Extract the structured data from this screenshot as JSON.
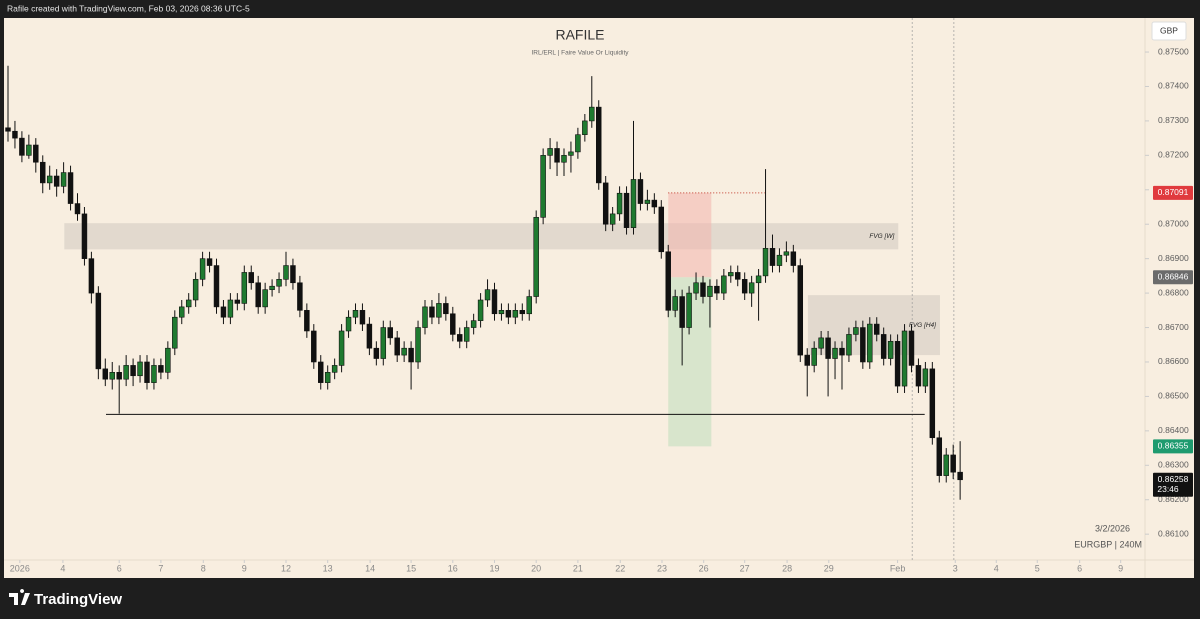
{
  "header": "Rafile created with TradingView.com, Feb 03, 2026 08:36 UTC-5",
  "footer": {
    "brand": "TradingView"
  },
  "chart_data": {
    "type": "candlestick",
    "title": "RAFILE",
    "subtitle": "IRL/ERL | Faire Value Or Liquidity",
    "currency": "GBP",
    "date_label": "3/2/2026",
    "symbol_label": "EURGBP | 240M",
    "up_color": "#1f7a30",
    "down_color": "#111111",
    "grid": false,
    "xlim": [
      0,
      163.6
    ],
    "ylim": [
      0.86025,
      0.87593
    ],
    "yticks": [
      {
        "value": 0.861,
        "label": "0.86100"
      },
      {
        "value": 0.862,
        "label": "0.86200"
      },
      {
        "value": 0.863,
        "label": "0.86300"
      },
      {
        "value": 0.864,
        "label": "0.86400"
      },
      {
        "value": 0.865,
        "label": "0.86500"
      },
      {
        "value": 0.866,
        "label": "0.86600"
      },
      {
        "value": 0.867,
        "label": "0.86700"
      },
      {
        "value": 0.868,
        "label": "0.86800"
      },
      {
        "value": 0.869,
        "label": "0.86900"
      },
      {
        "value": 0.87,
        "label": "0.87000"
      },
      {
        "value": 0.871,
        "label": "0.87100"
      },
      {
        "value": 0.872,
        "label": "0.87200"
      },
      {
        "value": 0.873,
        "label": "0.87300"
      },
      {
        "value": 0.874,
        "label": "0.87400"
      },
      {
        "value": 0.875,
        "label": "0.87500"
      }
    ],
    "xticks": [
      {
        "value": 1.7,
        "label": "2026"
      },
      {
        "value": 7.9,
        "label": "4"
      },
      {
        "value": 16,
        "label": "6"
      },
      {
        "value": 22,
        "label": "7"
      },
      {
        "value": 28.1,
        "label": "8"
      },
      {
        "value": 34,
        "label": "9"
      },
      {
        "value": 40,
        "label": "12"
      },
      {
        "value": 46,
        "label": "13"
      },
      {
        "value": 52.1,
        "label": "14"
      },
      {
        "value": 58,
        "label": "15"
      },
      {
        "value": 64,
        "label": "16"
      },
      {
        "value": 70,
        "label": "19"
      },
      {
        "value": 76,
        "label": "20"
      },
      {
        "value": 82,
        "label": "21"
      },
      {
        "value": 88.1,
        "label": "22"
      },
      {
        "value": 94.1,
        "label": "23"
      },
      {
        "value": 100.1,
        "label": "26"
      },
      {
        "value": 106,
        "label": "27"
      },
      {
        "value": 112.1,
        "label": "28"
      },
      {
        "value": 118.1,
        "label": "29"
      },
      {
        "value": 128,
        "label": "Feb"
      },
      {
        "value": 136.3,
        "label": "3"
      },
      {
        "value": 142.2,
        "label": "4"
      },
      {
        "value": 148.1,
        "label": "5"
      },
      {
        "value": 154.2,
        "label": "6"
      },
      {
        "value": 160.1,
        "label": "9"
      }
    ],
    "candles": [
      [
        0.8728,
        0.8746,
        0.8724,
        0.8727
      ],
      [
        0.8727,
        0.873,
        0.8722,
        0.8725
      ],
      [
        0.8725,
        0.8727,
        0.8718,
        0.872
      ],
      [
        0.872,
        0.8726,
        0.8719,
        0.8723
      ],
      [
        0.8723,
        0.8725,
        0.8715,
        0.8718
      ],
      [
        0.8718,
        0.872,
        0.8709,
        0.8712
      ],
      [
        0.8712,
        0.8717,
        0.871,
        0.8714
      ],
      [
        0.8714,
        0.8716,
        0.8708,
        0.8711
      ],
      [
        0.8711,
        0.8718,
        0.8709,
        0.8715
      ],
      [
        0.8715,
        0.8717,
        0.8704,
        0.8706
      ],
      [
        0.8706,
        0.8709,
        0.8701,
        0.8703
      ],
      [
        0.8703,
        0.8705,
        0.8688,
        0.869
      ],
      [
        0.869,
        0.8692,
        0.8677,
        0.868
      ],
      [
        0.868,
        0.8682,
        0.8655,
        0.8658
      ],
      [
        0.8658,
        0.8661,
        0.8653,
        0.8655
      ],
      [
        0.8655,
        0.866,
        0.8652,
        0.8657
      ],
      [
        0.8657,
        0.8659,
        0.8645,
        0.8655
      ],
      [
        0.8655,
        0.8662,
        0.8653,
        0.8659
      ],
      [
        0.8659,
        0.8661,
        0.8653,
        0.8656
      ],
      [
        0.8656,
        0.8662,
        0.8654,
        0.866
      ],
      [
        0.866,
        0.8662,
        0.8652,
        0.8654
      ],
      [
        0.8654,
        0.8661,
        0.8652,
        0.8659
      ],
      [
        0.8659,
        0.8661,
        0.8655,
        0.8657
      ],
      [
        0.8657,
        0.8666,
        0.8655,
        0.8664
      ],
      [
        0.8664,
        0.8675,
        0.8662,
        0.8673
      ],
      [
        0.8673,
        0.8678,
        0.8671,
        0.8676
      ],
      [
        0.8676,
        0.868,
        0.8674,
        0.8678
      ],
      [
        0.8678,
        0.8686,
        0.8676,
        0.8684
      ],
      [
        0.8684,
        0.8692,
        0.8682,
        0.869
      ],
      [
        0.869,
        0.8692,
        0.8686,
        0.8688
      ],
      [
        0.8688,
        0.869,
        0.8674,
        0.8676
      ],
      [
        0.8676,
        0.8678,
        0.8671,
        0.8673
      ],
      [
        0.8673,
        0.868,
        0.8671,
        0.8678
      ],
      [
        0.8678,
        0.868,
        0.8675,
        0.8677
      ],
      [
        0.8677,
        0.8688,
        0.8675,
        0.8686
      ],
      [
        0.8686,
        0.8688,
        0.8681,
        0.8683
      ],
      [
        0.8683,
        0.8685,
        0.8674,
        0.8676
      ],
      [
        0.8676,
        0.8683,
        0.8674,
        0.8681
      ],
      [
        0.8681,
        0.8684,
        0.8679,
        0.8682
      ],
      [
        0.8682,
        0.8686,
        0.868,
        0.8684
      ],
      [
        0.8684,
        0.8692,
        0.8682,
        0.8688
      ],
      [
        0.8688,
        0.869,
        0.8681,
        0.8683
      ],
      [
        0.8683,
        0.8685,
        0.8673,
        0.8675
      ],
      [
        0.8675,
        0.8677,
        0.8667,
        0.8669
      ],
      [
        0.8669,
        0.8671,
        0.8658,
        0.866
      ],
      [
        0.866,
        0.8662,
        0.8652,
        0.8654
      ],
      [
        0.8654,
        0.8659,
        0.8652,
        0.8657
      ],
      [
        0.8657,
        0.8661,
        0.8655,
        0.8659
      ],
      [
        0.8659,
        0.8671,
        0.8657,
        0.8669
      ],
      [
        0.8669,
        0.8675,
        0.8667,
        0.8673
      ],
      [
        0.8673,
        0.8677,
        0.8671,
        0.8675
      ],
      [
        0.8675,
        0.8677,
        0.8669,
        0.8671
      ],
      [
        0.8671,
        0.8673,
        0.8662,
        0.8664
      ],
      [
        0.8664,
        0.8666,
        0.8659,
        0.8661
      ],
      [
        0.8661,
        0.8672,
        0.8659,
        0.867
      ],
      [
        0.867,
        0.8672,
        0.8665,
        0.8667
      ],
      [
        0.8667,
        0.8669,
        0.866,
        0.8662
      ],
      [
        0.8662,
        0.8666,
        0.866,
        0.8664
      ],
      [
        0.8664,
        0.8666,
        0.8652,
        0.866
      ],
      [
        0.866,
        0.8672,
        0.8658,
        0.867
      ],
      [
        0.867,
        0.8678,
        0.8668,
        0.8676
      ],
      [
        0.8676,
        0.8678,
        0.8671,
        0.8673
      ],
      [
        0.8673,
        0.868,
        0.8671,
        0.8677
      ],
      [
        0.8677,
        0.8679,
        0.8672,
        0.8674
      ],
      [
        0.8674,
        0.8676,
        0.8666,
        0.8668
      ],
      [
        0.8668,
        0.867,
        0.8664,
        0.8666
      ],
      [
        0.8666,
        0.8672,
        0.8664,
        0.867
      ],
      [
        0.867,
        0.8674,
        0.8668,
        0.8672
      ],
      [
        0.8672,
        0.868,
        0.867,
        0.8678
      ],
      [
        0.8678,
        0.8684,
        0.8676,
        0.8681
      ],
      [
        0.8681,
        0.8683,
        0.8672,
        0.8674
      ],
      [
        0.8674,
        0.8677,
        0.8672,
        0.8675
      ],
      [
        0.8675,
        0.8677,
        0.8671,
        0.8673
      ],
      [
        0.8673,
        0.8677,
        0.8671,
        0.8675
      ],
      [
        0.8675,
        0.8677,
        0.8672,
        0.8674
      ],
      [
        0.8674,
        0.8681,
        0.8672,
        0.8679
      ],
      [
        0.8679,
        0.8704,
        0.8677,
        0.8702
      ],
      [
        0.8702,
        0.8722,
        0.87,
        0.872
      ],
      [
        0.872,
        0.8725,
        0.8716,
        0.8722
      ],
      [
        0.8722,
        0.8724,
        0.8714,
        0.8718
      ],
      [
        0.8718,
        0.8722,
        0.8714,
        0.872
      ],
      [
        0.872,
        0.8724,
        0.8715,
        0.8721
      ],
      [
        0.8721,
        0.8728,
        0.8719,
        0.8726
      ],
      [
        0.8726,
        0.8732,
        0.8724,
        0.873
      ],
      [
        0.873,
        0.8743,
        0.8728,
        0.8734
      ],
      [
        0.8734,
        0.8736,
        0.871,
        0.8712
      ],
      [
        0.8712,
        0.8714,
        0.8698,
        0.87
      ],
      [
        0.87,
        0.8705,
        0.8698,
        0.8703
      ],
      [
        0.8703,
        0.8711,
        0.8701,
        0.8709
      ],
      [
        0.8709,
        0.8711,
        0.8697,
        0.8699
      ],
      [
        0.8699,
        0.873,
        0.8697,
        0.8713
      ],
      [
        0.8713,
        0.8715,
        0.8704,
        0.8706
      ],
      [
        0.8706,
        0.871,
        0.8704,
        0.8707
      ],
      [
        0.8707,
        0.8709,
        0.8703,
        0.8705
      ],
      [
        0.8705,
        0.8707,
        0.869,
        0.8692
      ],
      [
        0.8692,
        0.8694,
        0.8673,
        0.8675
      ],
      [
        0.8675,
        0.8681,
        0.8673,
        0.8679
      ],
      [
        0.8679,
        0.8681,
        0.8659,
        0.867
      ],
      [
        0.867,
        0.8682,
        0.8668,
        0.868
      ],
      [
        0.868,
        0.8686,
        0.8678,
        0.8683
      ],
      [
        0.8683,
        0.8685,
        0.8677,
        0.8679
      ],
      [
        0.8679,
        0.8684,
        0.867,
        0.8682
      ],
      [
        0.8682,
        0.8684,
        0.8678,
        0.868
      ],
      [
        0.868,
        0.8687,
        0.8678,
        0.8685
      ],
      [
        0.8685,
        0.8688,
        0.8683,
        0.8686
      ],
      [
        0.8686,
        0.8688,
        0.8682,
        0.8684
      ],
      [
        0.8684,
        0.8686,
        0.8678,
        0.868
      ],
      [
        0.868,
        0.8685,
        0.8676,
        0.8683
      ],
      [
        0.8683,
        0.8687,
        0.8672,
        0.8685
      ],
      [
        0.8685,
        0.8716,
        0.8683,
        0.8693
      ],
      [
        0.8693,
        0.8697,
        0.8686,
        0.8688
      ],
      [
        0.8688,
        0.8693,
        0.8686,
        0.8691
      ],
      [
        0.8691,
        0.8695,
        0.8689,
        0.8692
      ],
      [
        0.8692,
        0.8694,
        0.8686,
        0.8688
      ],
      [
        0.8688,
        0.869,
        0.866,
        0.8662
      ],
      [
        0.8662,
        0.8664,
        0.865,
        0.8659
      ],
      [
        0.8659,
        0.8666,
        0.8657,
        0.8664
      ],
      [
        0.8664,
        0.8669,
        0.8662,
        0.8667
      ],
      [
        0.8667,
        0.8669,
        0.865,
        0.8661
      ],
      [
        0.8661,
        0.8666,
        0.8655,
        0.8664
      ],
      [
        0.8664,
        0.8666,
        0.8652,
        0.8662
      ],
      [
        0.8662,
        0.867,
        0.866,
        0.8668
      ],
      [
        0.8668,
        0.8672,
        0.8666,
        0.867
      ],
      [
        0.867,
        0.8672,
        0.8658,
        0.866
      ],
      [
        0.866,
        0.8673,
        0.8658,
        0.8671
      ],
      [
        0.8671,
        0.8673,
        0.8666,
        0.8668
      ],
      [
        0.8668,
        0.867,
        0.8659,
        0.8661
      ],
      [
        0.8661,
        0.8668,
        0.8659,
        0.8666
      ],
      [
        0.8666,
        0.8668,
        0.8651,
        0.8653
      ],
      [
        0.8653,
        0.8671,
        0.8651,
        0.8669
      ],
      [
        0.8669,
        0.8671,
        0.8657,
        0.8659
      ],
      [
        0.8659,
        0.8661,
        0.8651,
        0.8653
      ],
      [
        0.8653,
        0.866,
        0.8651,
        0.8658
      ],
      [
        0.8658,
        0.866,
        0.8636,
        0.8638
      ],
      [
        0.8638,
        0.864,
        0.8625,
        0.8627
      ],
      [
        0.8627,
        0.8635,
        0.8625,
        0.8633
      ],
      [
        0.8633,
        0.8636,
        0.8626,
        0.8628
      ],
      [
        0.8628,
        0.8637,
        0.862,
        0.86258
      ]
    ],
    "zones": [
      {
        "label": "FVG [W]",
        "x": [
          8.1,
          128.1
        ],
        "y": [
          0.86927,
          0.87003
        ]
      },
      {
        "label": "FVG [H4]",
        "x": [
          115.1,
          134.1
        ],
        "y": [
          0.8662,
          0.86794
        ]
      }
    ],
    "position": {
      "x": [
        95,
        101.2
      ],
      "top": 0.87091,
      "entry": 0.86846,
      "bottom": 0.86355,
      "top_line_end": 108.9
    },
    "level": {
      "y": 0.86448,
      "x": [
        14.1,
        131.9
      ]
    },
    "sessions": [
      130.1,
      136.1
    ],
    "last_price": 0.86258,
    "countdown": "23:46"
  }
}
